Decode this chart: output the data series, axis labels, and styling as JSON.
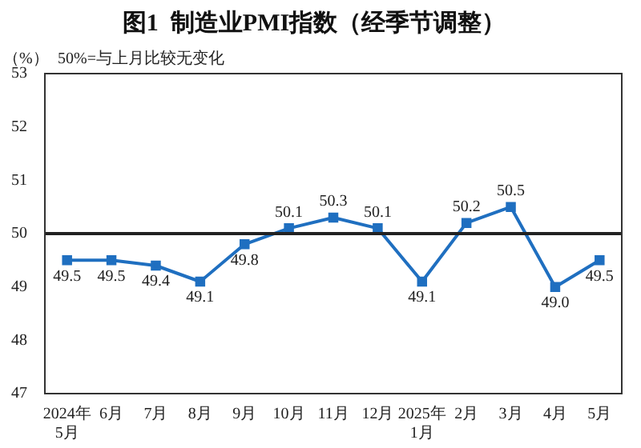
{
  "chart_data": {
    "type": "line",
    "title": "图1  制造业PMI指数（经季节调整）",
    "annotations": [
      "（%）",
      "50%=与上月比较无变化"
    ],
    "categories": [
      "2024年\n5月",
      "6月",
      "7月",
      "8月",
      "9月",
      "10月",
      "11月",
      "12月",
      "2025年\n1月",
      "2月",
      "3月",
      "4月",
      "5月"
    ],
    "series": [
      {
        "color": "#1f6fc0",
        "values": [
          49.5,
          49.5,
          49.4,
          49.1,
          49.8,
          50.1,
          50.3,
          50.1,
          49.1,
          50.2,
          50.5,
          49.0,
          49.5
        ],
        "value_labels": [
          "49.5",
          "49.5",
          "49.4",
          "49.1",
          "49.8",
          "50.1",
          "50.3",
          "50.1",
          "49.1",
          "50.2",
          "50.5",
          "49.0",
          "49.5"
        ]
      }
    ],
    "ylim": [
      47,
      53
    ],
    "yticks": [
      47,
      48,
      49,
      50,
      51,
      52,
      53
    ],
    "ref_lines": [
      {
        "axis": "y",
        "value": 50,
        "color": "#222222"
      }
    ],
    "marker": "square",
    "line_style": "solid",
    "grid": false,
    "legend": false
  }
}
